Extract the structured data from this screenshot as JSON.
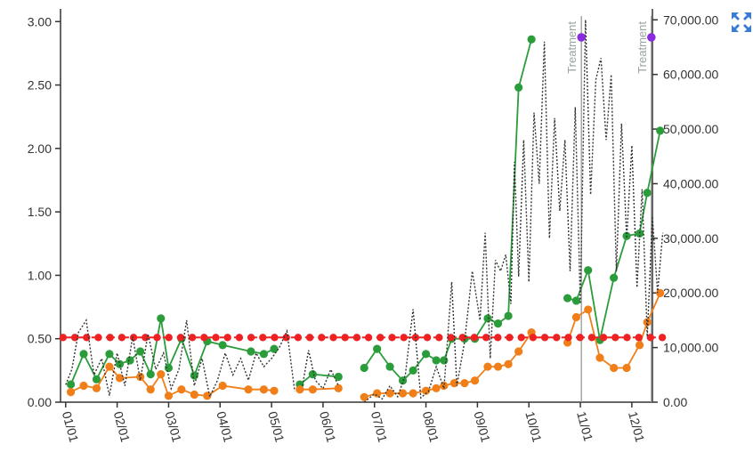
{
  "chart_data": {
    "type": "line",
    "title": "",
    "xlabel": "",
    "ylabel": "",
    "left_axis": {
      "ylim": [
        0,
        3.1
      ],
      "ticks": [
        0,
        0.5,
        1.0,
        1.5,
        2.0,
        2.5,
        3.0
      ],
      "tick_labels": [
        "0.00",
        "0.50",
        "1.00",
        "1.50",
        "2.00",
        "2.50",
        "3.00"
      ]
    },
    "right_axis": {
      "ylim": [
        0,
        72000
      ],
      "ticks": [
        0,
        10000,
        20000,
        30000,
        40000,
        50000,
        60000,
        70000
      ],
      "tick_labels": [
        "0.00",
        "10,000.00",
        "20,000.00",
        "30,000.00",
        "40,000.00",
        "50,000.00",
        "60,000.00",
        "70,000.00"
      ]
    },
    "x_axis": {
      "xlim": [
        -0.1,
        11.4
      ],
      "ticks": [
        0,
        1,
        2,
        3,
        4,
        5,
        6,
        7,
        8,
        9,
        10,
        11
      ],
      "tick_labels": [
        "01/01",
        "02/01",
        "03/01",
        "04/01",
        "05/01",
        "06/01",
        "07/01",
        "08/01",
        "09/01",
        "10/01",
        "11/01",
        "12/01"
      ]
    },
    "grid": false,
    "series": [
      {
        "axis": "left",
        "color": "#2a9d3a",
        "style": "line-markers",
        "segments": [
          [
            [
              0.1,
              0.14
            ],
            [
              0.35,
              0.38
            ],
            [
              0.6,
              0.18
            ],
            [
              0.85,
              0.38
            ],
            [
              1.05,
              0.3
            ],
            [
              1.25,
              0.33
            ],
            [
              1.45,
              0.4
            ],
            [
              1.65,
              0.22
            ],
            [
              1.85,
              0.66
            ],
            [
              2.0,
              0.27
            ],
            [
              2.25,
              0.5
            ],
            [
              2.5,
              0.21
            ],
            [
              2.75,
              0.48
            ],
            [
              3.05,
              0.45
            ],
            [
              3.6,
              0.4
            ],
            [
              3.85,
              0.38
            ],
            [
              4.05,
              0.42
            ]
          ],
          [
            [
              4.55,
              0.14
            ],
            [
              4.8,
              0.22
            ],
            [
              5.3,
              0.2
            ]
          ],
          [
            [
              5.8,
              0.27
            ],
            [
              6.05,
              0.42
            ],
            [
              6.3,
              0.28
            ],
            [
              6.55,
              0.17
            ],
            [
              6.75,
              0.25
            ],
            [
              7.0,
              0.38
            ],
            [
              7.2,
              0.33
            ],
            [
              7.35,
              0.33
            ],
            [
              7.5,
              0.5
            ],
            [
              7.75,
              0.5
            ],
            [
              7.95,
              0.5
            ],
            [
              8.2,
              0.66
            ],
            [
              8.4,
              0.62
            ],
            [
              8.6,
              0.68
            ],
            [
              8.8,
              2.48
            ],
            [
              9.05,
              2.86
            ]
          ],
          [
            [
              9.75,
              0.82
            ],
            [
              9.92,
              0.8
            ],
            [
              10.15,
              1.04
            ],
            [
              10.38,
              0.49
            ],
            [
              10.65,
              0.98
            ],
            [
              10.9,
              1.31
            ],
            [
              11.15,
              1.33
            ],
            [
              11.3,
              1.65
            ],
            [
              11.55,
              2.14
            ]
          ]
        ]
      },
      {
        "axis": "left",
        "color": "#f07f19",
        "style": "line-markers",
        "segments": [
          [
            [
              0.1,
              0.08
            ],
            [
              0.35,
              0.13
            ],
            [
              0.6,
              0.11
            ],
            [
              0.85,
              0.28
            ],
            [
              1.05,
              0.19
            ],
            [
              1.45,
              0.2
            ],
            [
              1.65,
              0.1
            ],
            [
              1.85,
              0.22
            ],
            [
              2.0,
              0.05
            ],
            [
              2.25,
              0.1
            ],
            [
              2.5,
              0.06
            ],
            [
              2.75,
              0.05
            ],
            [
              3.05,
              0.13
            ],
            [
              3.55,
              0.1
            ],
            [
              3.85,
              0.1
            ],
            [
              4.05,
              0.09
            ]
          ],
          [
            [
              4.55,
              0.1
            ],
            [
              4.8,
              0.1
            ],
            [
              5.3,
              0.11
            ]
          ],
          [
            [
              5.8,
              0.04
            ],
            [
              6.05,
              0.07
            ],
            [
              6.3,
              0.07
            ],
            [
              6.55,
              0.07
            ],
            [
              6.75,
              0.07
            ],
            [
              7.0,
              0.09
            ],
            [
              7.2,
              0.11
            ],
            [
              7.35,
              0.13
            ],
            [
              7.55,
              0.15
            ],
            [
              7.75,
              0.15
            ],
            [
              7.95,
              0.17
            ],
            [
              8.2,
              0.28
            ],
            [
              8.4,
              0.28
            ],
            [
              8.6,
              0.3
            ],
            [
              8.8,
              0.4
            ],
            [
              9.05,
              0.55
            ]
          ],
          [
            [
              9.75,
              0.47
            ],
            [
              9.92,
              0.67
            ],
            [
              10.15,
              0.73
            ],
            [
              10.38,
              0.35
            ],
            [
              10.65,
              0.27
            ],
            [
              10.9,
              0.27
            ],
            [
              11.15,
              0.45
            ],
            [
              11.3,
              0.63
            ],
            [
              11.55,
              0.86
            ]
          ]
        ]
      },
      {
        "axis": "left",
        "color": "#ee2222",
        "style": "dashed-with-dots",
        "y": 0.51,
        "x_range": [
          -0.05,
          11.6
        ]
      },
      {
        "axis": "right",
        "color": "#333333",
        "style": "dotted",
        "segments": [
          [
            [
              0.0,
              3200
            ],
            [
              0.12,
              6000
            ],
            [
              0.25,
              12800
            ],
            [
              0.4,
              15000
            ],
            [
              0.55,
              5000
            ],
            [
              0.7,
              8000
            ],
            [
              0.85,
              1200
            ],
            [
              1.0,
              9000
            ],
            [
              1.15,
              3000
            ],
            [
              1.3,
              12000
            ],
            [
              1.45,
              4000
            ],
            [
              1.6,
              12500
            ],
            [
              1.75,
              6000
            ],
            [
              1.9,
              9000
            ],
            [
              2.05,
              2500
            ],
            [
              2.2,
              6000
            ],
            [
              2.35,
              15000
            ],
            [
              2.5,
              3000
            ],
            [
              2.65,
              8000
            ],
            [
              2.8,
              1000
            ],
            [
              2.95,
              4000
            ],
            [
              3.1,
              9000
            ],
            [
              3.25,
              5000
            ],
            [
              3.4,
              8000
            ],
            [
              3.55,
              4000
            ],
            [
              3.7,
              9000
            ],
            [
              3.85,
              6500
            ],
            [
              4.0,
              8000
            ],
            [
              4.15,
              10000
            ],
            [
              4.3,
              13000
            ],
            [
              4.45,
              2000
            ]
          ],
          [
            [
              4.6,
              3000
            ],
            [
              4.72,
              9500
            ],
            [
              4.85,
              4000
            ],
            [
              5.0,
              2500
            ],
            [
              5.15,
              6000
            ],
            [
              5.3,
              3000
            ]
          ],
          [
            [
              5.8,
              0
            ],
            [
              6.0,
              1500
            ],
            [
              6.15,
              600
            ],
            [
              6.3,
              3000
            ],
            [
              6.45,
              1000
            ],
            [
              6.6,
              5000
            ],
            [
              6.75,
              17000
            ],
            [
              6.9,
              800
            ],
            [
              7.05,
              2000
            ],
            [
              7.2,
              6500
            ],
            [
              7.35,
              2500
            ],
            [
              7.5,
              22000
            ],
            [
              7.6,
              3000
            ],
            [
              7.75,
              11000
            ],
            [
              7.9,
              24000
            ],
            [
              8.05,
              15000
            ],
            [
              8.15,
              31000
            ],
            [
              8.25,
              8000
            ],
            [
              8.35,
              26000
            ],
            [
              8.45,
              24000
            ],
            [
              8.55,
              27000
            ],
            [
              8.65,
              18000
            ],
            [
              8.72,
              44000
            ],
            [
              8.8,
              23000
            ],
            [
              8.9,
              48000
            ],
            [
              9.0,
              22000
            ],
            [
              9.1,
              53000
            ],
            [
              9.2,
              40000
            ],
            [
              9.3,
              66000
            ],
            [
              9.4,
              30000
            ],
            [
              9.5,
              52000
            ],
            [
              9.6,
              35000
            ],
            [
              9.7,
              48000
            ],
            [
              9.8,
              24000
            ],
            [
              9.9,
              54000
            ],
            [
              10.0,
              18000
            ],
            [
              10.1,
              70000
            ],
            [
              10.2,
              38000
            ],
            [
              10.3,
              59000
            ],
            [
              10.4,
              63000
            ],
            [
              10.5,
              48000
            ],
            [
              10.6,
              60000
            ],
            [
              10.7,
              24000
            ],
            [
              10.8,
              51000
            ],
            [
              10.9,
              30000
            ],
            [
              11.0,
              47000
            ],
            [
              11.1,
              21000
            ],
            [
              11.2,
              39000
            ],
            [
              11.3,
              12000
            ],
            [
              11.4,
              34000
            ],
            [
              11.5,
              20000
            ],
            [
              11.6,
              31000
            ]
          ]
        ]
      }
    ],
    "annotations": [
      {
        "label": "Treatment",
        "x": 10.02,
        "marker_y_right": 66800,
        "color": "#8a2be2"
      },
      {
        "label": "Treatment",
        "x": 11.38,
        "marker_y_right": 66800,
        "color": "#8a2be2"
      }
    ]
  },
  "ui": {
    "expand_icon": "expand-icon",
    "expand_color": "#3a7bd5"
  }
}
